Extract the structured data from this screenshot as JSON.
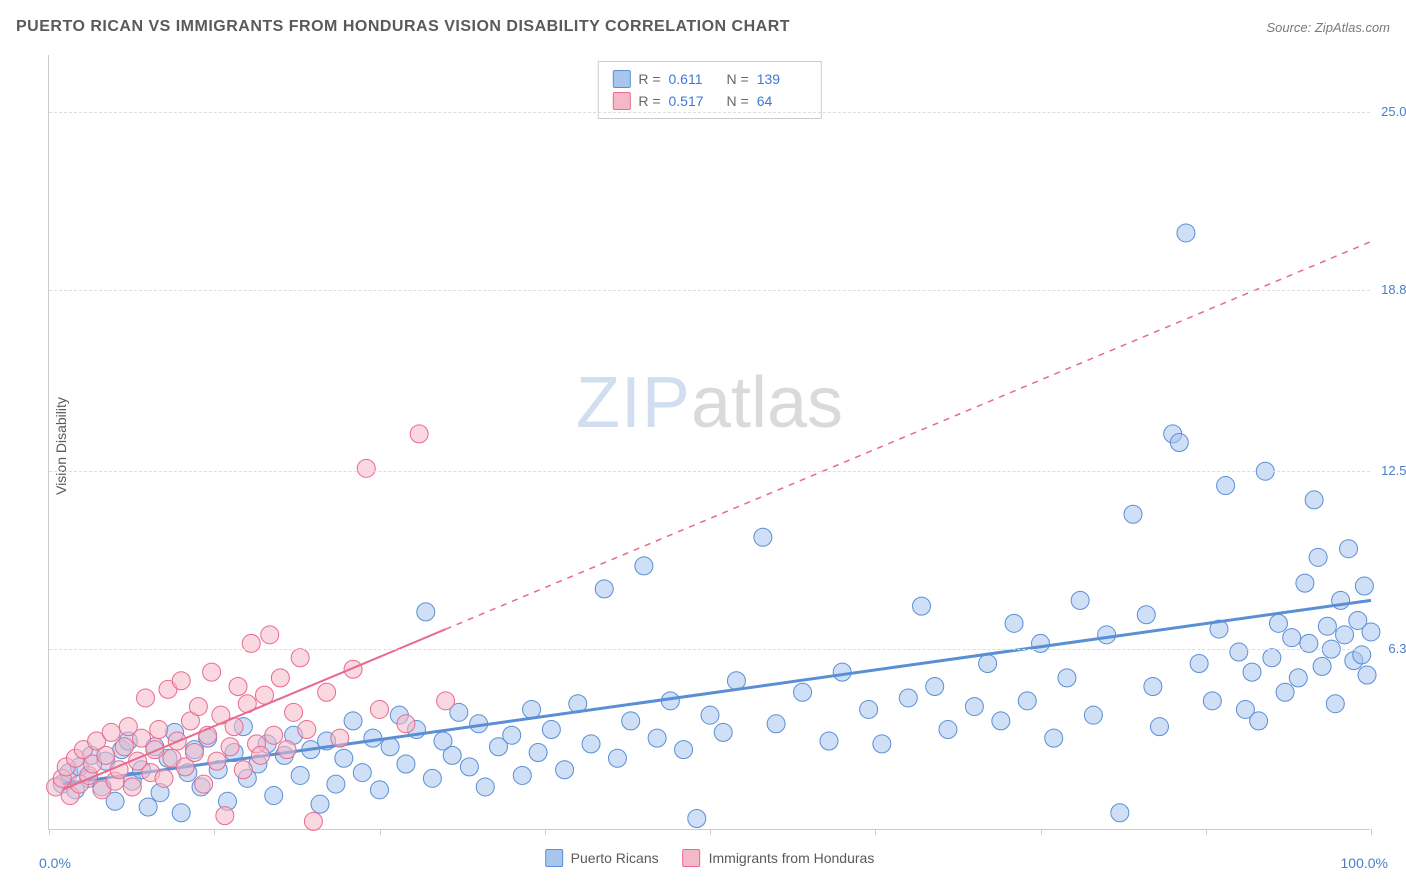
{
  "title": "PUERTO RICAN VS IMMIGRANTS FROM HONDURAS VISION DISABILITY CORRELATION CHART",
  "source": "Source: ZipAtlas.com",
  "y_axis_label": "Vision Disability",
  "watermark": {
    "part1": "ZIP",
    "part2": "atlas"
  },
  "chart": {
    "type": "scatter",
    "xlim": [
      0,
      100
    ],
    "ylim": [
      0,
      27
    ],
    "x_origin_label": "0.0%",
    "x_end_label": "100.0%",
    "x_ticks": [
      0,
      12.5,
      25,
      37.5,
      50,
      62.5,
      75,
      87.5,
      100
    ],
    "y_grid_ticks": [
      {
        "val": 6.3,
        "label": "6.3%"
      },
      {
        "val": 12.5,
        "label": "12.5%"
      },
      {
        "val": 18.8,
        "label": "18.8%"
      },
      {
        "val": 25.0,
        "label": "25.0%"
      }
    ],
    "background_color": "#ffffff",
    "grid_color": "#dddddd",
    "axis_color": "#cccccc",
    "marker_radius": 9,
    "marker_opacity": 0.55,
    "series": [
      {
        "name": "Puerto Ricans",
        "color_fill": "#a7c5ed",
        "color_stroke": "#5a8fd6",
        "stat_color": "#3e78d6",
        "R": "0.611",
        "N": "139",
        "trend": {
          "x1": 1,
          "y1": 1.6,
          "x2": 100,
          "y2": 8.0,
          "solid_to_x": 100,
          "width": 3
        },
        "points": [
          [
            1,
            1.6
          ],
          [
            1.5,
            2.0
          ],
          [
            2,
            1.4
          ],
          [
            2.3,
            2.2
          ],
          [
            3,
            1.8
          ],
          [
            3.2,
            2.6
          ],
          [
            4,
            1.5
          ],
          [
            4.3,
            2.4
          ],
          [
            5,
            1.0
          ],
          [
            5.5,
            2.8
          ],
          [
            6,
            3.1
          ],
          [
            6.3,
            1.7
          ],
          [
            7,
            2.1
          ],
          [
            7.5,
            0.8
          ],
          [
            8,
            2.9
          ],
          [
            8.4,
            1.3
          ],
          [
            9,
            2.5
          ],
          [
            9.5,
            3.4
          ],
          [
            10,
            0.6
          ],
          [
            10.5,
            2.0
          ],
          [
            11,
            2.8
          ],
          [
            11.5,
            1.5
          ],
          [
            12,
            3.2
          ],
          [
            12.8,
            2.1
          ],
          [
            13.5,
            1.0
          ],
          [
            14,
            2.7
          ],
          [
            14.7,
            3.6
          ],
          [
            15,
            1.8
          ],
          [
            15.8,
            2.3
          ],
          [
            16.5,
            3.0
          ],
          [
            17,
            1.2
          ],
          [
            17.8,
            2.6
          ],
          [
            18.5,
            3.3
          ],
          [
            19,
            1.9
          ],
          [
            19.8,
            2.8
          ],
          [
            20.5,
            0.9
          ],
          [
            21,
            3.1
          ],
          [
            21.7,
            1.6
          ],
          [
            22.3,
            2.5
          ],
          [
            23,
            3.8
          ],
          [
            23.7,
            2.0
          ],
          [
            24.5,
            3.2
          ],
          [
            25,
            1.4
          ],
          [
            25.8,
            2.9
          ],
          [
            26.5,
            4.0
          ],
          [
            27,
            2.3
          ],
          [
            27.8,
            3.5
          ],
          [
            28.5,
            7.6
          ],
          [
            29,
            1.8
          ],
          [
            29.8,
            3.1
          ],
          [
            30.5,
            2.6
          ],
          [
            31,
            4.1
          ],
          [
            31.8,
            2.2
          ],
          [
            32.5,
            3.7
          ],
          [
            33,
            1.5
          ],
          [
            34,
            2.9
          ],
          [
            35,
            3.3
          ],
          [
            35.8,
            1.9
          ],
          [
            36.5,
            4.2
          ],
          [
            37,
            2.7
          ],
          [
            38,
            3.5
          ],
          [
            39,
            2.1
          ],
          [
            40,
            4.4
          ],
          [
            41,
            3.0
          ],
          [
            42,
            8.4
          ],
          [
            43,
            2.5
          ],
          [
            44,
            3.8
          ],
          [
            45,
            9.2
          ],
          [
            46,
            3.2
          ],
          [
            47,
            4.5
          ],
          [
            48,
            2.8
          ],
          [
            49,
            0.4
          ],
          [
            50,
            4.0
          ],
          [
            51,
            3.4
          ],
          [
            52,
            5.2
          ],
          [
            54,
            10.2
          ],
          [
            55,
            3.7
          ],
          [
            57,
            4.8
          ],
          [
            59,
            3.1
          ],
          [
            60,
            5.5
          ],
          [
            62,
            4.2
          ],
          [
            63,
            3.0
          ],
          [
            65,
            4.6
          ],
          [
            66,
            7.8
          ],
          [
            67,
            5.0
          ],
          [
            68,
            3.5
          ],
          [
            70,
            4.3
          ],
          [
            71,
            5.8
          ],
          [
            72,
            3.8
          ],
          [
            73,
            7.2
          ],
          [
            74,
            4.5
          ],
          [
            75,
            6.5
          ],
          [
            76,
            3.2
          ],
          [
            77,
            5.3
          ],
          [
            78,
            8.0
          ],
          [
            79,
            4.0
          ],
          [
            80,
            6.8
          ],
          [
            81,
            0.6
          ],
          [
            82,
            11.0
          ],
          [
            83,
            7.5
          ],
          [
            83.5,
            5.0
          ],
          [
            84,
            3.6
          ],
          [
            85,
            13.8
          ],
          [
            85.5,
            13.5
          ],
          [
            86,
            20.8
          ],
          [
            87,
            5.8
          ],
          [
            88,
            4.5
          ],
          [
            88.5,
            7.0
          ],
          [
            89,
            12.0
          ],
          [
            90,
            6.2
          ],
          [
            90.5,
            4.2
          ],
          [
            91,
            5.5
          ],
          [
            91.5,
            3.8
          ],
          [
            92,
            12.5
          ],
          [
            92.5,
            6.0
          ],
          [
            93,
            7.2
          ],
          [
            93.5,
            4.8
          ],
          [
            94,
            6.7
          ],
          [
            94.5,
            5.3
          ],
          [
            95,
            8.6
          ],
          [
            95.3,
            6.5
          ],
          [
            95.7,
            11.5
          ],
          [
            96,
            9.5
          ],
          [
            96.3,
            5.7
          ],
          [
            96.7,
            7.1
          ],
          [
            97,
            6.3
          ],
          [
            97.3,
            4.4
          ],
          [
            97.7,
            8.0
          ],
          [
            98,
            6.8
          ],
          [
            98.3,
            9.8
          ],
          [
            98.7,
            5.9
          ],
          [
            99,
            7.3
          ],
          [
            99.3,
            6.1
          ],
          [
            99.5,
            8.5
          ],
          [
            99.7,
            5.4
          ],
          [
            100,
            6.9
          ]
        ]
      },
      {
        "name": "Immigrants from Honduras",
        "color_fill": "#f5b8c9",
        "color_stroke": "#e86a8f",
        "stat_color": "#3e78d6",
        "R": "0.517",
        "N": "64",
        "trend": {
          "x1": 1,
          "y1": 1.4,
          "x2": 100,
          "y2": 20.5,
          "solid_to_x": 30,
          "width": 2
        },
        "points": [
          [
            0.5,
            1.5
          ],
          [
            1,
            1.8
          ],
          [
            1.3,
            2.2
          ],
          [
            1.6,
            1.2
          ],
          [
            2,
            2.5
          ],
          [
            2.3,
            1.6
          ],
          [
            2.6,
            2.8
          ],
          [
            3,
            1.9
          ],
          [
            3.3,
            2.3
          ],
          [
            3.6,
            3.1
          ],
          [
            4,
            1.4
          ],
          [
            4.3,
            2.6
          ],
          [
            4.7,
            3.4
          ],
          [
            5,
            1.7
          ],
          [
            5.3,
            2.1
          ],
          [
            5.7,
            2.9
          ],
          [
            6,
            3.6
          ],
          [
            6.3,
            1.5
          ],
          [
            6.7,
            2.4
          ],
          [
            7,
            3.2
          ],
          [
            7.3,
            4.6
          ],
          [
            7.7,
            2.0
          ],
          [
            8,
            2.8
          ],
          [
            8.3,
            3.5
          ],
          [
            8.7,
            1.8
          ],
          [
            9,
            4.9
          ],
          [
            9.3,
            2.5
          ],
          [
            9.7,
            3.1
          ],
          [
            10,
            5.2
          ],
          [
            10.3,
            2.2
          ],
          [
            10.7,
            3.8
          ],
          [
            11,
            2.7
          ],
          [
            11.3,
            4.3
          ],
          [
            11.7,
            1.6
          ],
          [
            12,
            3.3
          ],
          [
            12.3,
            5.5
          ],
          [
            12.7,
            2.4
          ],
          [
            13,
            4.0
          ],
          [
            13.3,
            0.5
          ],
          [
            13.7,
            2.9
          ],
          [
            14,
            3.6
          ],
          [
            14.3,
            5.0
          ],
          [
            14.7,
            2.1
          ],
          [
            15,
            4.4
          ],
          [
            15.3,
            6.5
          ],
          [
            15.7,
            3.0
          ],
          [
            16,
            2.6
          ],
          [
            16.3,
            4.7
          ],
          [
            16.7,
            6.8
          ],
          [
            17,
            3.3
          ],
          [
            17.5,
            5.3
          ],
          [
            18,
            2.8
          ],
          [
            18.5,
            4.1
          ],
          [
            19,
            6.0
          ],
          [
            19.5,
            3.5
          ],
          [
            20,
            0.3
          ],
          [
            21,
            4.8
          ],
          [
            22,
            3.2
          ],
          [
            23,
            5.6
          ],
          [
            24,
            12.6
          ],
          [
            25,
            4.2
          ],
          [
            27,
            3.7
          ],
          [
            28,
            13.8
          ],
          [
            30,
            4.5
          ]
        ]
      }
    ]
  }
}
